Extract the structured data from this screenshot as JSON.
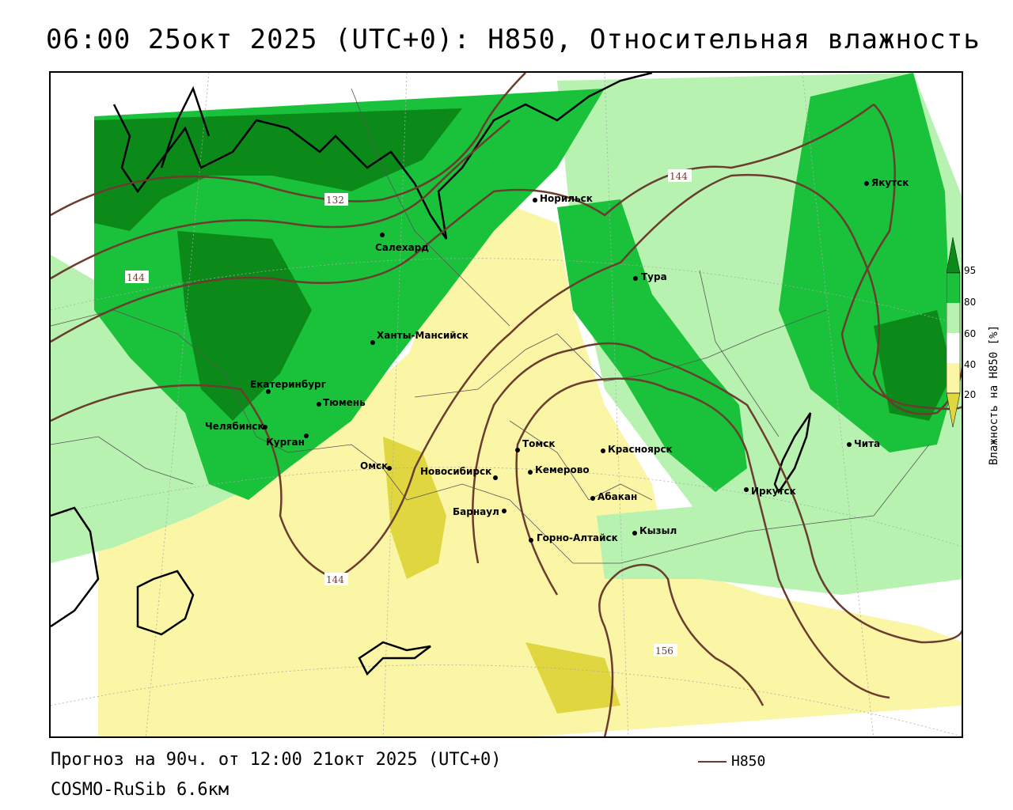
{
  "header": {
    "title": "06:00 25окт 2025 (UTC+0): H850, Относительная влажность"
  },
  "footer": {
    "forecast": "Прогноз на 90ч. от 12:00 21окт 2025 (UTC+0)",
    "model": "COSMO-RuSib 6.6км",
    "contour_legend": "H850"
  },
  "colorbar": {
    "title": "Влажность на H850 [%]",
    "ticks": [
      "95",
      "80",
      "60",
      "40",
      "20"
    ],
    "colors": {
      "dark_green": "#0b8a1a",
      "green": "#19c23a",
      "light_green": "#b8f2b0",
      "white": "#ffffff",
      "light_yellow": "#fbf5a6",
      "yellow": "#e0d640"
    }
  },
  "contour_labels": [
    "132",
    "144",
    "144",
    "144",
    "156"
  ],
  "cities": [
    {
      "name": "Якутск"
    },
    {
      "name": "Норильск"
    },
    {
      "name": "Салехард"
    },
    {
      "name": "Тура"
    },
    {
      "name": "Ханты-Мансийск"
    },
    {
      "name": "Екатеринбург"
    },
    {
      "name": "Тюмень"
    },
    {
      "name": "Челябинск"
    },
    {
      "name": "Курган"
    },
    {
      "name": "Омск"
    },
    {
      "name": "Новосибирск"
    },
    {
      "name": "Томск"
    },
    {
      "name": "Кемерово"
    },
    {
      "name": "Красноярск"
    },
    {
      "name": "Абакан"
    },
    {
      "name": "Барнаул"
    },
    {
      "name": "Горно-Алтайск"
    },
    {
      "name": "Кызыл"
    },
    {
      "name": "Иркутск"
    },
    {
      "name": "Чита"
    }
  ],
  "colors": {
    "contour": "#6b3d2e",
    "coast": "#000000",
    "borders": "#555555"
  }
}
